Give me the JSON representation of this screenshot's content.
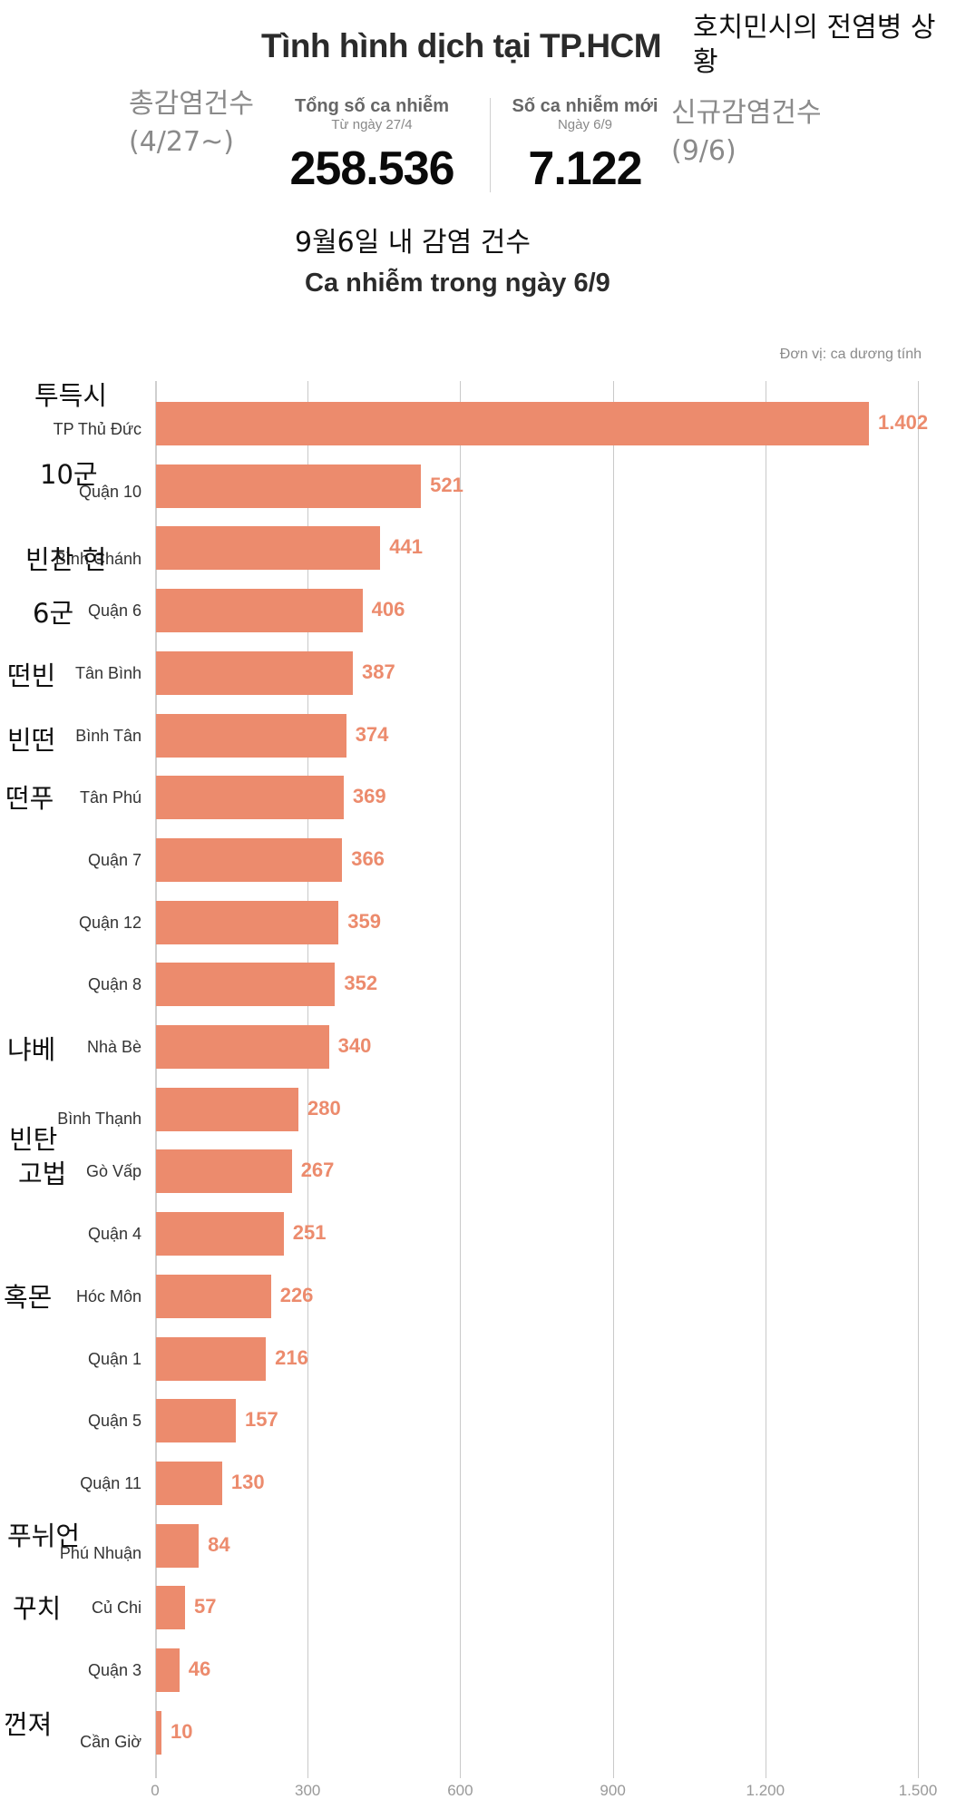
{
  "header": {
    "title": "Tình hình dịch tại TP.HCM",
    "title_ko": "호치민시의 전염병 상황",
    "total": {
      "label": "Tổng số ca nhiễm",
      "sublabel": "Từ ngày 27/4",
      "value": "258.536",
      "ko_label": "총감염건수",
      "ko_sub": "(4/27~)"
    },
    "new": {
      "label": "Số ca nhiễm mới",
      "sublabel": "Ngày 6/9",
      "value": "7.122",
      "ko_label": "신규감염건수",
      "ko_sub": "(9/6)"
    },
    "subtitle_ko": "9월6일 내 감염 건수",
    "subtitle": "Ca nhiễm trong ngày 6/9",
    "unit": "Đơn vị: ca dương tính"
  },
  "colors": {
    "bar": "#ec8b6d",
    "value_label": "#ec8b6d",
    "grid": "#c9c9c9",
    "title": "#2b2b2b"
  },
  "chart_data": {
    "type": "bar",
    "orientation": "horizontal",
    "title": "Ca nhiễm trong ngày 6/9",
    "xlabel": "Đơn vị: ca dương tính",
    "ylabel": "",
    "xlim": [
      0,
      1500
    ],
    "xticks": [
      "0",
      "300",
      "600",
      "900",
      "1.200",
      "1.500"
    ],
    "grid": true,
    "categories": [
      "TP Thủ Đức",
      "Quận 10",
      "Bình Chánh",
      "Quận 6",
      "Tân Bình",
      "Bình Tân",
      "Tân Phú",
      "Quận 7",
      "Quận 12",
      "Quận 8",
      "Nhà Bè",
      "Bình Thạnh",
      "Gò Vấp",
      "Quận 4",
      "Hóc Môn",
      "Quận 1",
      "Quận 5",
      "Quận 11",
      "Phú Nhuận",
      "Củ Chi",
      "Quận 3",
      "Cần Giờ"
    ],
    "values": [
      1402,
      521,
      441,
      406,
      387,
      374,
      369,
      366,
      359,
      352,
      340,
      280,
      267,
      251,
      226,
      216,
      157,
      130,
      84,
      57,
      46,
      10
    ],
    "value_labels": [
      "1.402",
      "521",
      "441",
      "406",
      "387",
      "374",
      "369",
      "366",
      "359",
      "352",
      "340",
      "280",
      "267",
      "251",
      "226",
      "216",
      "157",
      "130",
      "84",
      "57",
      "46",
      "10"
    ],
    "korean_annotations": [
      "투득시",
      "10군",
      "빈찬 현",
      "6군",
      "떤빈",
      "빈떤",
      "떤푸",
      "",
      "",
      "",
      "냐베",
      "빈탄",
      "고법",
      "",
      "혹몬",
      "",
      "",
      "",
      "푸뉘언",
      "꾸치",
      "",
      "껀져"
    ]
  }
}
